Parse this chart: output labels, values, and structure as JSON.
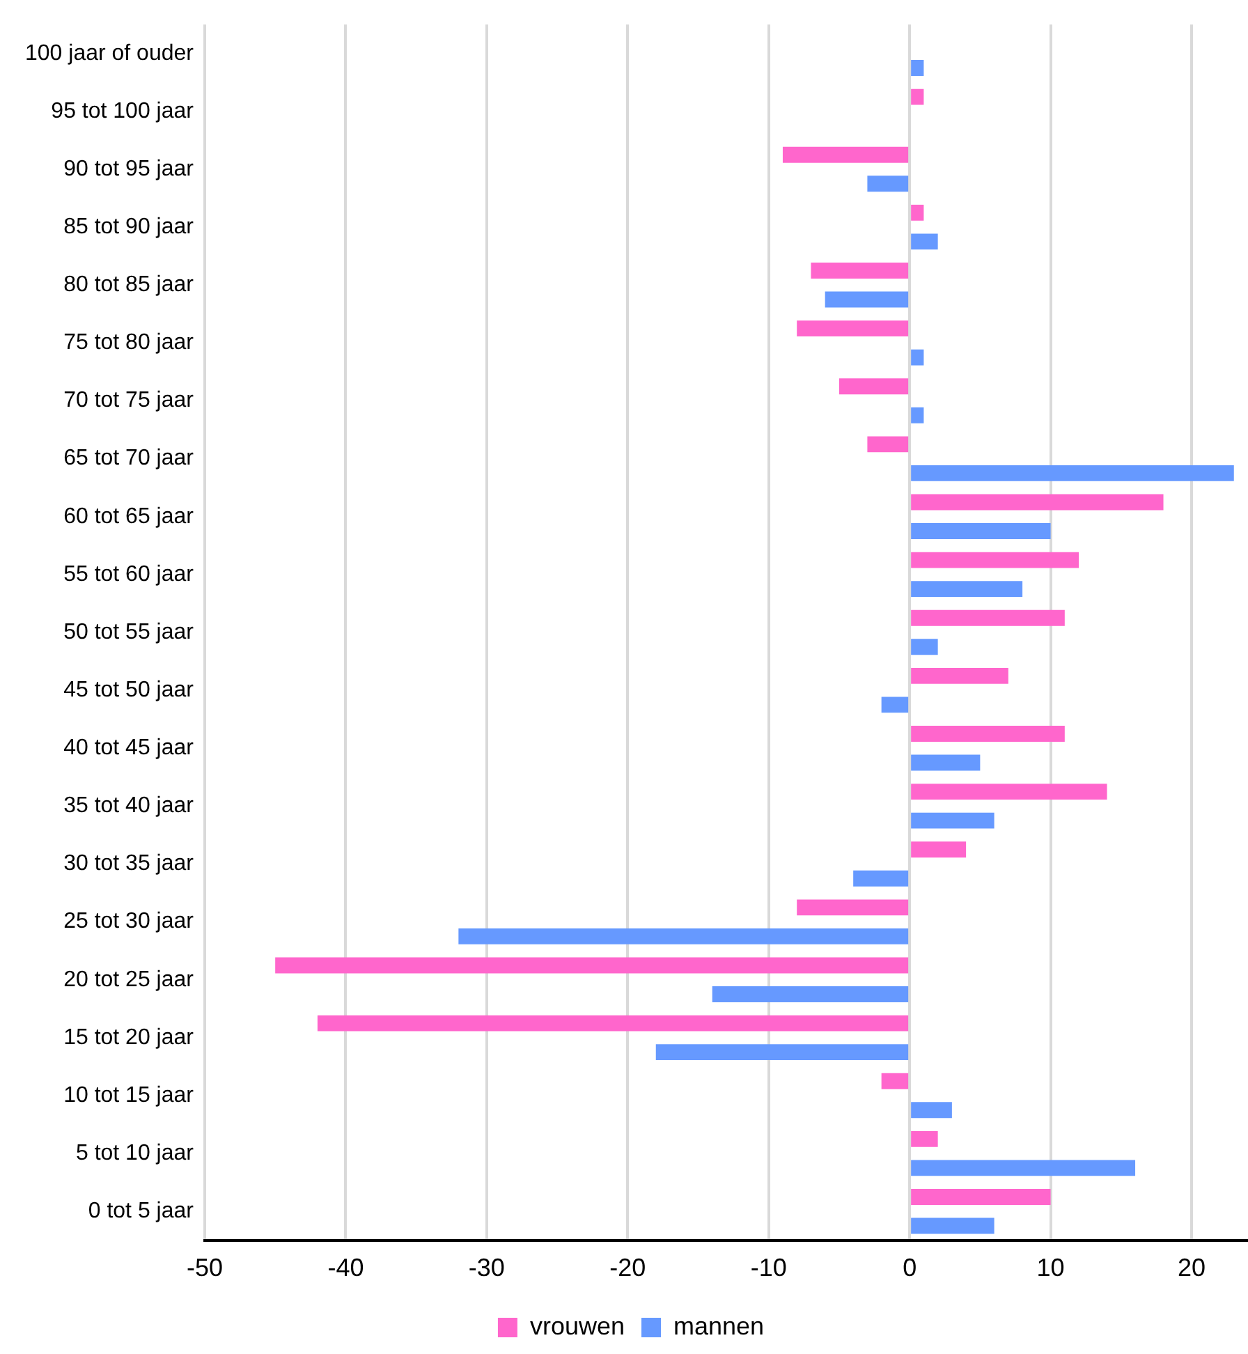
{
  "chart_data": {
    "type": "bar",
    "orientation": "horizontal",
    "categories": [
      "100 jaar of ouder",
      "95 tot 100 jaar",
      "90 tot 95 jaar",
      "85 tot 90 jaar",
      "80 tot 85 jaar",
      "75 tot 80 jaar",
      "70 tot 75 jaar",
      "65 tot 70 jaar",
      "60 tot 65 jaar",
      "55 tot 60 jaar",
      "50 tot 55 jaar",
      "45 tot 50 jaar",
      "40 tot 45 jaar",
      "35 tot 40 jaar",
      "30 tot 35 jaar",
      "25 tot 30 jaar",
      "20 tot 25 jaar",
      "15 tot 20 jaar",
      "10 tot 15 jaar",
      "5 tot 10 jaar",
      "0 tot 5 jaar"
    ],
    "series": [
      {
        "name": "vrouwen",
        "color": "#ff66cc",
        "values": [
          0,
          1,
          -9,
          1,
          -7,
          -8,
          -5,
          -3,
          18,
          12,
          11,
          7,
          11,
          14,
          4,
          -8,
          -45,
          -42,
          -2,
          2,
          10
        ]
      },
      {
        "name": "mannen",
        "color": "#6699ff",
        "values": [
          1,
          0,
          -3,
          2,
          -6,
          1,
          1,
          23,
          10,
          8,
          2,
          -2,
          5,
          6,
          -4,
          -32,
          -14,
          -18,
          3,
          16,
          6
        ]
      }
    ],
    "xlim": [
      -50,
      24
    ],
    "xticks": [
      -50,
      -40,
      -30,
      -20,
      -10,
      0,
      10,
      20
    ],
    "grid": "x",
    "legend": "bottom"
  }
}
